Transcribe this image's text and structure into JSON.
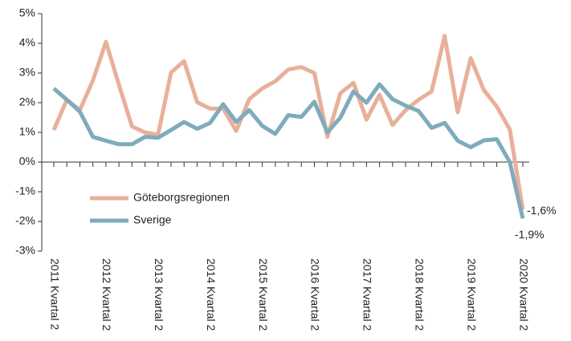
{
  "chart_data": {
    "type": "line",
    "categories": [
      "2011 Kvartal 2",
      null,
      null,
      null,
      "2012 Kvartal 2",
      null,
      null,
      null,
      "2013 Kvartal 2",
      null,
      null,
      null,
      "2014 Kvartal 2",
      null,
      null,
      null,
      "2015 Kvartal 2",
      null,
      null,
      null,
      "2016 Kvartal 2",
      null,
      null,
      null,
      "2017 Kvartal 2",
      null,
      null,
      null,
      "2018 Kvartal 2",
      null,
      null,
      null,
      "2019 Kvartal 2",
      null,
      null,
      null,
      "2020 Kvartal 2"
    ],
    "series": [
      {
        "name": "Göteborgsregionen",
        "color": "#e8b09a",
        "values": [
          1.08,
          2.1,
          1.75,
          2.75,
          4.05,
          2.6,
          1.2,
          1.0,
          0.92,
          3.02,
          3.4,
          2.02,
          1.8,
          1.8,
          1.05,
          2.12,
          2.48,
          2.72,
          3.12,
          3.2,
          3.0,
          0.85,
          2.32,
          2.67,
          1.43,
          2.27,
          1.25,
          1.75,
          2.1,
          2.38,
          4.25,
          1.68,
          3.5,
          2.43,
          1.87,
          1.1,
          -1.6
        ],
        "value_labels": [
          null,
          null,
          null,
          null,
          null,
          null,
          null,
          null,
          null,
          null,
          null,
          null,
          null,
          null,
          null,
          null,
          null,
          null,
          null,
          null,
          null,
          null,
          null,
          null,
          null,
          null,
          null,
          null,
          null,
          null,
          null,
          null,
          null,
          null,
          null,
          null,
          "-1,6%"
        ]
      },
      {
        "name": "Sverige",
        "color": "#7fabbc",
        "values": [
          2.48,
          2.1,
          1.7,
          0.85,
          0.72,
          0.6,
          0.6,
          0.85,
          0.82,
          1.08,
          1.35,
          1.12,
          1.32,
          1.95,
          1.35,
          1.75,
          1.22,
          0.95,
          1.58,
          1.52,
          2.03,
          1.0,
          1.5,
          2.38,
          2.0,
          2.62,
          2.12,
          1.9,
          1.72,
          1.15,
          1.32,
          0.72,
          0.5,
          0.73,
          0.77,
          0.0,
          -1.9
        ],
        "value_labels": [
          null,
          null,
          null,
          null,
          null,
          null,
          null,
          null,
          null,
          null,
          null,
          null,
          null,
          null,
          null,
          null,
          null,
          null,
          null,
          null,
          null,
          null,
          null,
          null,
          null,
          null,
          null,
          null,
          null,
          null,
          null,
          null,
          null,
          null,
          null,
          null,
          "-1,9%"
        ]
      }
    ],
    "ylim": [
      -3,
      5
    ],
    "yticks": [
      {
        "value": -3,
        "label": "-3%"
      },
      {
        "value": -2,
        "label": "-2%"
      },
      {
        "value": -1,
        "label": "-1%"
      },
      {
        "value": 0,
        "label": "0%"
      },
      {
        "value": 1,
        "label": "1%"
      },
      {
        "value": 2,
        "label": "2%"
      },
      {
        "value": 3,
        "label": "3%"
      },
      {
        "value": 4,
        "label": "4%"
      },
      {
        "value": 5,
        "label": "5%"
      }
    ],
    "grid": false
  }
}
